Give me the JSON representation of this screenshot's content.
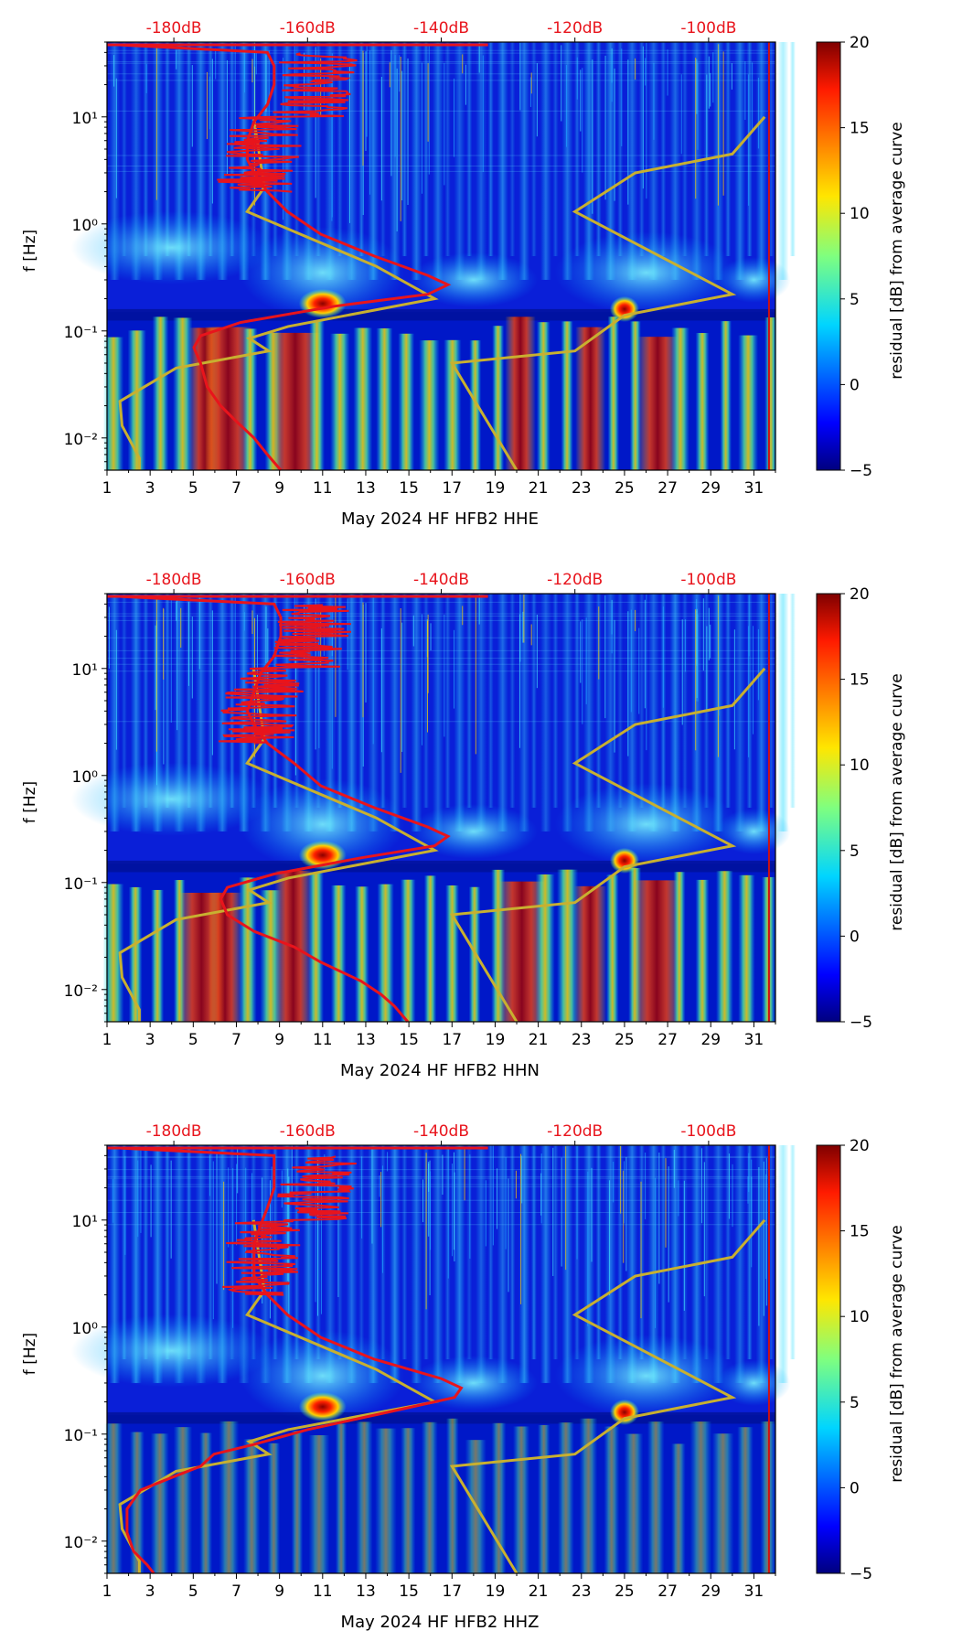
{
  "figure": {
    "title_hidden": "",
    "colorbar_label": "residual [dB] from average curve",
    "colors": {
      "psd_curve": "#e8141c",
      "model_curve": "#c8b030",
      "db_label": "#e8141c",
      "axis": "#000000"
    }
  },
  "chart_data": [
    {
      "type": "heatmap",
      "channel": "HHE",
      "xlabel": "May 2024 HF HFB2  HHE",
      "ylabel": "f [Hz]",
      "x_ticks": [
        "1",
        "3",
        "5",
        "7",
        "9",
        "11",
        "13",
        "15",
        "17",
        "19",
        "21",
        "23",
        "25",
        "27",
        "29",
        "31"
      ],
      "x_range": [
        1,
        32
      ],
      "y_range": [
        0.005,
        50
      ],
      "y_scale": "log",
      "y_ticks": [
        "10⁻²",
        "10⁻¹",
        "10⁰",
        "10¹"
      ],
      "top_ticks": [
        "-180dB",
        "-160dB",
        "-140dB",
        "-120dB",
        "-100dB"
      ],
      "top_range_db": [
        -190,
        -90
      ],
      "colorbar": {
        "min": -5,
        "max": 20,
        "ticks": [
          "20",
          "15",
          "10",
          "5",
          "0",
          "−5"
        ],
        "label": "residual [dB] from average curve"
      },
      "psd_curve_db_vs_hz": [
        [
          -164,
          0.005
        ],
        [
          -166,
          0.007
        ],
        [
          -168,
          0.01
        ],
        [
          -171,
          0.015
        ],
        [
          -173,
          0.02
        ],
        [
          -175,
          0.03
        ],
        [
          -176,
          0.05
        ],
        [
          -177,
          0.07
        ],
        [
          -176,
          0.09
        ],
        [
          -170,
          0.12
        ],
        [
          -156,
          0.17
        ],
        [
          -142,
          0.22
        ],
        [
          -139,
          0.27
        ],
        [
          -142,
          0.33
        ],
        [
          -150,
          0.5
        ],
        [
          -158,
          0.8
        ],
        [
          -163,
          1.3
        ],
        [
          -166,
          2
        ],
        [
          -168,
          3
        ],
        [
          -169,
          4
        ],
        [
          -169,
          6
        ],
        [
          -168,
          9
        ],
        [
          -166,
          13
        ],
        [
          -165,
          20
        ],
        [
          -165,
          30
        ],
        [
          -166,
          40
        ],
        [
          -188,
          47
        ]
      ],
      "model_curve_day_vs_hz": [
        [
          2.5,
          0.005
        ],
        [
          2.5,
          0.0065
        ],
        [
          1.7,
          0.013
        ],
        [
          1.6,
          0.022
        ],
        [
          4.2,
          0.045
        ],
        [
          8.5,
          0.065
        ],
        [
          7.6,
          0.085
        ],
        [
          9.4,
          0.11
        ],
        [
          16.2,
          0.2
        ],
        [
          13.5,
          0.4
        ],
        [
          7.5,
          1.3
        ],
        [
          8.3,
          2.2
        ],
        [
          7.8,
          10
        ]
      ],
      "model_curve2_day_vs_hz": [
        [
          20.0,
          0.005
        ],
        [
          17.0,
          0.05
        ],
        [
          22.7,
          0.065
        ],
        [
          25.0,
          0.14
        ],
        [
          30.0,
          0.22
        ],
        [
          22.7,
          1.3
        ],
        [
          25.5,
          3.0
        ],
        [
          30.0,
          4.5
        ],
        [
          31.5,
          10
        ]
      ]
    },
    {
      "type": "heatmap",
      "channel": "HHN",
      "xlabel": "May 2024 HF HFB2  HHN",
      "ylabel": "f [Hz]",
      "x_ticks": [
        "1",
        "3",
        "5",
        "7",
        "9",
        "11",
        "13",
        "15",
        "17",
        "19",
        "21",
        "23",
        "25",
        "27",
        "29",
        "31"
      ],
      "x_range": [
        1,
        32
      ],
      "y_range": [
        0.005,
        50
      ],
      "y_scale": "log",
      "y_ticks": [
        "10⁻²",
        "10⁻¹",
        "10⁰",
        "10¹"
      ],
      "top_ticks": [
        "-180dB",
        "-160dB",
        "-140dB",
        "-120dB",
        "-100dB"
      ],
      "top_range_db": [
        -190,
        -90
      ],
      "colorbar": {
        "min": -5,
        "max": 20,
        "ticks": [
          "20",
          "15",
          "10",
          "5",
          "0",
          "−5"
        ],
        "label": "residual [dB] from average curve"
      },
      "psd_curve_db_vs_hz": [
        [
          -145,
          0.005
        ],
        [
          -147,
          0.007
        ],
        [
          -149,
          0.009
        ],
        [
          -152,
          0.012
        ],
        [
          -158,
          0.018
        ],
        [
          -162,
          0.025
        ],
        [
          -168,
          0.035
        ],
        [
          -172,
          0.05
        ],
        [
          -173,
          0.07
        ],
        [
          -172,
          0.09
        ],
        [
          -165,
          0.12
        ],
        [
          -152,
          0.17
        ],
        [
          -141,
          0.22
        ],
        [
          -139,
          0.27
        ],
        [
          -142,
          0.33
        ],
        [
          -150,
          0.5
        ],
        [
          -158,
          0.8
        ],
        [
          -162,
          1.3
        ],
        [
          -166,
          2
        ],
        [
          -168,
          3
        ],
        [
          -169,
          4
        ],
        [
          -168,
          6
        ],
        [
          -167,
          9
        ],
        [
          -165,
          13
        ],
        [
          -164,
          20
        ],
        [
          -164,
          30
        ],
        [
          -165,
          40
        ],
        [
          -188,
          47
        ]
      ],
      "model_curve_day_vs_hz": [
        [
          2.5,
          0.005
        ],
        [
          2.5,
          0.0065
        ],
        [
          1.7,
          0.013
        ],
        [
          1.6,
          0.022
        ],
        [
          4.2,
          0.045
        ],
        [
          8.5,
          0.065
        ],
        [
          7.6,
          0.085
        ],
        [
          9.4,
          0.11
        ],
        [
          16.2,
          0.2
        ],
        [
          13.5,
          0.4
        ],
        [
          7.5,
          1.3
        ],
        [
          8.3,
          2.2
        ],
        [
          7.8,
          10
        ]
      ],
      "model_curve2_day_vs_hz": [
        [
          20.0,
          0.005
        ],
        [
          17.0,
          0.05
        ],
        [
          22.7,
          0.065
        ],
        [
          25.0,
          0.14
        ],
        [
          30.0,
          0.22
        ],
        [
          22.7,
          1.3
        ],
        [
          25.5,
          3.0
        ],
        [
          30.0,
          4.5
        ],
        [
          31.5,
          10
        ]
      ]
    },
    {
      "type": "heatmap",
      "channel": "HHZ",
      "xlabel": "May 2024 HF HFB2  HHZ",
      "ylabel": "f [Hz]",
      "x_ticks": [
        "1",
        "3",
        "5",
        "7",
        "9",
        "11",
        "13",
        "15",
        "17",
        "19",
        "21",
        "23",
        "25",
        "27",
        "29",
        "31"
      ],
      "x_range": [
        1,
        32
      ],
      "y_range": [
        0.005,
        50
      ],
      "y_scale": "log",
      "y_ticks": [
        "10⁻²",
        "10⁻¹",
        "10⁰",
        "10¹"
      ],
      "top_ticks": [
        "-180dB",
        "-160dB",
        "-140dB",
        "-120dB",
        "-100dB"
      ],
      "top_range_db": [
        -190,
        -90
      ],
      "colorbar": {
        "min": -5,
        "max": 20,
        "ticks": [
          "20",
          "15",
          "10",
          "5",
          "0",
          "−5"
        ],
        "label": "residual [dB] from average curve"
      },
      "psd_curve_db_vs_hz": [
        [
          -183,
          0.005
        ],
        [
          -184,
          0.006
        ],
        [
          -186,
          0.008
        ],
        [
          -187,
          0.012
        ],
        [
          -187,
          0.02
        ],
        [
          -185,
          0.03
        ],
        [
          -180,
          0.04
        ],
        [
          -176,
          0.05
        ],
        [
          -174,
          0.065
        ],
        [
          -168,
          0.08
        ],
        [
          -160,
          0.11
        ],
        [
          -148,
          0.16
        ],
        [
          -138,
          0.22
        ],
        [
          -137,
          0.27
        ],
        [
          -140,
          0.33
        ],
        [
          -150,
          0.5
        ],
        [
          -158,
          0.8
        ],
        [
          -163,
          1.3
        ],
        [
          -166,
          2
        ],
        [
          -168,
          3
        ],
        [
          -168,
          4
        ],
        [
          -168,
          6
        ],
        [
          -167,
          9
        ],
        [
          -166,
          13
        ],
        [
          -165,
          20
        ],
        [
          -165,
          30
        ],
        [
          -165,
          40
        ],
        [
          -188,
          47
        ]
      ],
      "model_curve_day_vs_hz": [
        [
          2.5,
          0.005
        ],
        [
          2.5,
          0.0065
        ],
        [
          1.7,
          0.013
        ],
        [
          1.6,
          0.022
        ],
        [
          4.2,
          0.045
        ],
        [
          8.5,
          0.065
        ],
        [
          7.6,
          0.085
        ],
        [
          9.4,
          0.11
        ],
        [
          16.2,
          0.2
        ],
        [
          13.5,
          0.4
        ],
        [
          7.5,
          1.3
        ],
        [
          8.3,
          2.2
        ],
        [
          7.8,
          10
        ]
      ],
      "model_curve2_day_vs_hz": [
        [
          20.0,
          0.005
        ],
        [
          17.0,
          0.05
        ],
        [
          22.7,
          0.065
        ],
        [
          25.0,
          0.14
        ],
        [
          30.0,
          0.22
        ],
        [
          22.7,
          1.3
        ],
        [
          25.5,
          3.0
        ],
        [
          30.0,
          4.5
        ],
        [
          31.5,
          10
        ]
      ]
    }
  ]
}
